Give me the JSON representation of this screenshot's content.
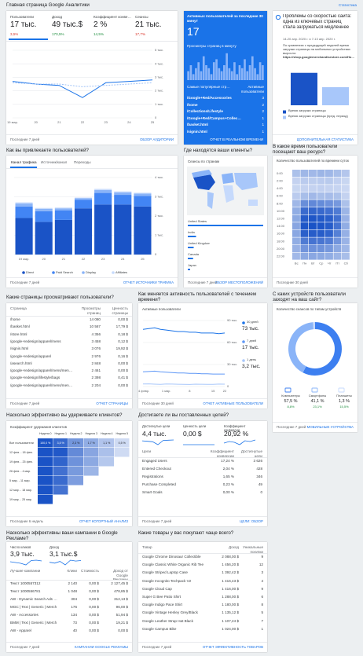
{
  "header": {
    "title": "Главная страница Google Аналитики",
    "insights": "Статистика"
  },
  "overview": {
    "metrics": [
      {
        "label": "Пользователи",
        "value": "17 тыс.",
        "change": "3,5%",
        "color": "#d93025"
      },
      {
        "label": "Доход",
        "value": "49 тыс.$",
        "change": "170,5%",
        "color": "#1e8e3e"
      },
      {
        "label": "Коэффициент конверсии",
        "value": "2 %",
        "change": "14,5%",
        "color": "#1e8e3e"
      },
      {
        "label": "Сеансы",
        "value": "21 тыс.",
        "change": "17,7%",
        "color": "#d93025"
      }
    ],
    "chart": {
      "x": [
        "19 мар.",
        "20",
        "21",
        "22",
        "23",
        "24",
        "25"
      ],
      "series": [
        {
          "color": "#1a73e8",
          "dash": false,
          "values": [
            2700,
            2500,
            2400,
            1500,
            2600,
            2700,
            2800
          ]
        },
        {
          "color": "#9fc2f7",
          "dash": true,
          "values": [
            2600,
            2500,
            2500,
            2300,
            2400,
            2500,
            2600
          ]
        }
      ],
      "ylim": [
        0,
        5000
      ],
      "yticks": [
        {
          "value": 0,
          "label": "0"
        },
        {
          "value": 1000,
          "label": "1 тыс."
        },
        {
          "value": 2000,
          "label": "2 тыс."
        },
        {
          "value": 3000,
          "label": "3 тыс."
        },
        {
          "value": 4000,
          "label": "4 тыс."
        },
        {
          "value": 5000,
          "label": "5 тыс."
        }
      ]
    },
    "footer": {
      "period": "Последние 7 дней",
      "link": "Обзор аудитории"
    }
  },
  "realtime": {
    "title": "Активных пользователей за последние 30 минут",
    "value": "17",
    "subtitle": "Просмотры страниц в минуту",
    "bars": [
      3,
      5,
      2,
      4,
      6,
      3,
      8,
      5,
      4,
      2,
      6,
      7,
      4,
      3,
      5,
      9,
      4,
      3,
      6,
      2,
      5,
      4,
      7,
      3,
      5,
      8,
      4,
      2,
      6,
      5
    ],
    "bars_max": 10,
    "columns": [
      "Самые популярные страницы",
      "Активные пользователи"
    ],
    "rows": [
      [
        "/Google+Red/Accessories",
        "3"
      ],
      [
        "/home",
        "2"
      ],
      [
        "/Collections/Lifestyle",
        "2"
      ],
      [
        "/Google+Red/Campus+Collection",
        "1"
      ],
      [
        "/basket.html",
        "1"
      ],
      [
        "/signin.html",
        "1"
      ]
    ],
    "link": "Отчет в реальном времени"
  },
  "insight": {
    "title": "Проблемы со скоростью сайта: одна из ключевых страниц стала загружаться медленнее",
    "date": "14-20 апр. 2020 г. и 7-13 апр. 2020 г.",
    "body": "По сравнению с предыдущей неделей время загрузки страницы на мобильных устройствах выросло:",
    "url": "https://shop.googlemerchandisestore.com/Home",
    "chart": {
      "series": [
        {
          "name": "Время загрузки страницы",
          "color": "#1a53c6",
          "value": 4.3
        },
        {
          "name": "Время загрузки страницы (пред. период)",
          "color": "#a8c7fa",
          "value": 2.4
        }
      ],
      "ylim": [
        0,
        5
      ]
    },
    "link": "Дополнительная статистика"
  },
  "acquisition": {
    "title": "Как вы привлекаете пользователей?",
    "tabs": [
      "Канал трафика",
      "Источник/канал",
      "Переходы"
    ],
    "chart": {
      "x": [
        "19 мар.",
        "20",
        "21",
        "22",
        "23",
        "24",
        "25"
      ],
      "series": [
        {
          "name": "Direct",
          "color": "#1a53c6",
          "values": [
            1900,
            1700,
            1800,
            2400,
            2600,
            2600,
            2500
          ]
        },
        {
          "name": "Paid Search",
          "color": "#4285f4",
          "values": [
            600,
            550,
            500,
            450,
            600,
            500,
            550
          ]
        },
        {
          "name": "Display",
          "color": "#8ab4f8",
          "values": [
            150,
            120,
            100,
            80,
            150,
            130,
            120
          ]
        },
        {
          "name": "Affiliates",
          "color": "#c6dafc",
          "values": [
            60,
            50,
            40,
            30,
            60,
            50,
            40
          ]
        }
      ],
      "ylim": [
        0,
        4000
      ],
      "yticks": [
        {
          "value": 0,
          "label": "0"
        },
        {
          "value": 1000,
          "label": "1 тыс."
        },
        {
          "value": 2000,
          "label": "2 тыс."
        },
        {
          "value": 3000,
          "label": "3 тыс."
        },
        {
          "value": 4000,
          "label": "4 тыс."
        }
      ]
    },
    "footer": {
      "period": "Последние 7 дней",
      "link": "Отчет Источники трафика"
    }
  },
  "geo": {
    "title": "Где находятся ваши клиенты?",
    "subtitle": "Сеансы по странам",
    "countries": [
      "United States",
      "India",
      "United Kingdom",
      "Canada",
      "Japan"
    ],
    "values": [
      12800,
      1400,
      1000,
      900,
      400
    ],
    "footer": {
      "period": "Последние 7 дней",
      "link": "Обзор местоположений"
    }
  },
  "time": {
    "title": "В какое время пользователи посещают ваш ресурс?",
    "subtitle": "Количество пользователей по времени суток",
    "days": [
      "Вс",
      "Пн",
      "Вт",
      "Ср",
      "Чт",
      "Пт",
      "Сб"
    ],
    "hours": [
      "0:00",
      "2:00",
      "4:00",
      "6:00",
      "8:00",
      "10:00",
      "12:00",
      "14:00",
      "16:00",
      "18:00",
      "20:00",
      "22:00"
    ],
    "values": [
      [
        20,
        25,
        24,
        26,
        25,
        22,
        18
      ],
      [
        12,
        15,
        14,
        15,
        16,
        13,
        10
      ],
      [
        10,
        12,
        12,
        13,
        12,
        11,
        9
      ],
      [
        15,
        22,
        24,
        22,
        23,
        20,
        12
      ],
      [
        25,
        45,
        48,
        46,
        44,
        40,
        20
      ],
      [
        30,
        62,
        65,
        63,
        60,
        55,
        26
      ],
      [
        32,
        70,
        72,
        71,
        68,
        60,
        28
      ],
      [
        34,
        72,
        74,
        73,
        70,
        58,
        30
      ],
      [
        33,
        68,
        70,
        69,
        66,
        52,
        29
      ],
      [
        30,
        55,
        58,
        57,
        54,
        42,
        27
      ],
      [
        28,
        42,
        44,
        43,
        40,
        32,
        25
      ],
      [
        24,
        32,
        33,
        32,
        30,
        26,
        22
      ]
    ],
    "color": "#1a53c6",
    "footer": {
      "period": "Последние 30 дней"
    }
  },
  "pages": {
    "title": "Какие страницы просматривают пользователи?",
    "columns": [
      "Страница",
      "Просмотры страниц",
      "Ценность страницы"
    ],
    "rows": [
      [
        "/home",
        "14 080",
        "0,00 $"
      ],
      [
        "/basket.html",
        "10 567",
        "17,79 $"
      ],
      [
        "/store.html",
        "4 356",
        "0,18 $"
      ],
      [
        "/google+redesign/apparel/mens",
        "3 458",
        "0,12 $"
      ],
      [
        "/signin.html",
        "3 076",
        "19,92 $"
      ],
      [
        "/google+redesign/apparel",
        "2 976",
        "0,16 $"
      ],
      [
        "/asearch.html",
        "2 848",
        "0,00 $"
      ],
      [
        "/google+redesign/apparel/mens/mens+t+shirts",
        "2 461",
        "0,00 $"
      ],
      [
        "/google+redesign/lifestyle/bags",
        "2 398",
        "0,41 $"
      ],
      [
        "/google+redesign/apparel/mens/mens+outerwear",
        "2 204",
        "0,00 $"
      ]
    ],
    "footer": {
      "period": "Последние 7 дней",
      "link": "Отчет Страницы"
    }
  },
  "activity": {
    "title": "Как меняется активность пользователей с течением времени?",
    "subtitle": "Активные пользователи",
    "chart": {
      "x": [
        "24 февр.",
        null,
        null,
        null,
        "1 мар.",
        null,
        null,
        null,
        "8",
        null,
        null,
        null,
        "15",
        null,
        "22"
      ],
      "series": [
        {
          "name": "30 дней",
          "total": "73 тыс.",
          "color": "#1a73e8",
          "dash": false,
          "values": [
            78000,
            79000,
            80000,
            78000,
            77000,
            76000,
            75000,
            75000,
            74000,
            74000,
            73000,
            73000,
            73000,
            72000,
            73000
          ]
        },
        {
          "name": "7 дней",
          "total": "17 тыс.",
          "color": "#5e97f6",
          "dash": false,
          "values": [
            20000,
            20500,
            21000,
            20000,
            19500,
            19000,
            18500,
            18500,
            18000,
            18000,
            17500,
            17500,
            17000,
            17000,
            17000
          ]
        },
        {
          "name": "1 день",
          "total": "3,2 тыс.",
          "color": "#a8c7fa",
          "dash": false,
          "values": [
            3500,
            3600,
            3200,
            2900,
            3400,
            3300,
            3100,
            3000,
            2800,
            3200,
            3100,
            2900,
            3000,
            3300,
            3200
          ]
        }
      ],
      "ylim": [
        0,
        90000
      ],
      "yticks": [
        {
          "value": 0,
          "label": "0"
        },
        {
          "value": 30000,
          "label": "30 тыс."
        },
        {
          "value": 60000,
          "label": "60 тыс."
        },
        {
          "value": 90000,
          "label": "90 тыс."
        }
      ]
    },
    "footer": {
      "period": "Последние 30 дней",
      "link": "Отчет Активные пользователи"
    }
  },
  "devices": {
    "title": "С каких устройств пользователи заходят на ваш сайт?",
    "subtitle": "Количество сеансов по типам устройств",
    "categories": [
      "Компьютеры",
      "Смартфоны",
      "Планшеты"
    ],
    "values": [
      57.5,
      41.1,
      1.3
    ],
    "value_labels": [
      "57,5 %",
      "41,1 %",
      "1,3 %"
    ],
    "changes": [
      "8,8%",
      "23,1%",
      "15,5%"
    ],
    "colors": [
      "#3d7ff0",
      "#8ab4f8",
      "#c6dafc"
    ],
    "footer": {
      "period": "Последние 7 дней",
      "link": "Мобильные устройства"
    }
  },
  "retention": {
    "title": "Насколько эффективно вы удерживаете клиентов?",
    "subtitle": "Коэффициент удержания клиентов",
    "columns": [
      "Неделя 0",
      "Неделя 1",
      "Неделя 2",
      "Неделя 3",
      "Неделя 4",
      "Неделя 5"
    ],
    "rows": [
      "Все пользователи",
      "12 фев. - 18 фев.",
      "19 фев. - 25 фев.",
      "26 фев. - 4 мар.",
      "5 мар. - 11 мар.",
      "12 мар. - 18 мар.",
      "19 мар. - 25 мар."
    ],
    "values": [
      [
        100,
        3.5,
        2.3,
        1.7,
        1.1,
        0.5
      ],
      [
        100,
        3.9,
        2.6,
        1.9,
        1.2,
        0.5
      ],
      [
        100,
        3.6,
        2.4,
        1.8,
        1.0,
        null
      ],
      [
        100,
        3.3,
        2.2,
        1.5,
        null,
        null
      ],
      [
        100,
        3.4,
        2.1,
        null,
        null,
        null
      ],
      [
        100,
        3.2,
        null,
        null,
        null,
        null
      ],
      [
        100,
        null,
        null,
        null,
        null,
        null
      ]
    ],
    "value_labels": [
      "100,0 %",
      "3,5 %",
      "2,3 %",
      "1,7 %",
      "1,1 %",
      "0,5 %"
    ],
    "color": "#1a53c6",
    "footer": {
      "period": "Последние 6 недель",
      "link": "Отчет Когортный анализ"
    }
  },
  "goals": {
    "title": "Достигаете ли вы поставленных целей?",
    "metrics": [
      {
        "label": "Достигнутые цели",
        "value": "4,4 тыс.",
        "spark": [
          620,
          600,
          580,
          450,
          640,
          650,
          660
        ]
      },
      {
        "label": "Ценность цели",
        "value": "0,00 $",
        "spark": [
          0,
          0,
          0,
          0,
          0,
          0,
          0
        ]
      },
      {
        "label": "Коэффициент конверсии",
        "value": "20,92 %",
        "spark": [
          20,
          21,
          20.5,
          19,
          21.5,
          21,
          22
        ]
      }
    ],
    "columns": [
      "Цели",
      "Коэффициент конверсии",
      "Достигнутые цели"
    ],
    "rows": [
      [
        "Engaged Users",
        "17,24 %",
        "3 626"
      ],
      [
        "Entered Checkout",
        "2,04 %",
        "428"
      ],
      [
        "Registrations",
        "1,65 %",
        "346"
      ],
      [
        "Purchase Completed",
        "0,23 %",
        "49"
      ],
      [
        "Smart Goals",
        "0,00 %",
        "0"
      ]
    ],
    "footer": {
      "period": "Последние 7 дней",
      "link": "Цели: обзор"
    }
  },
  "ads": {
    "title": "Насколько эффективны ваши кампании в Google Рекламе?",
    "metrics": [
      {
        "label": "Число кликов",
        "value": "3,9 тыс.",
        "spark": [
          560,
          540,
          520,
          480,
          590,
          600,
          580
        ]
      },
      {
        "label": "Доход",
        "value": "3,1 тыс.$",
        "spark": [
          420,
          380,
          460,
          300,
          520,
          480,
          500
        ]
      }
    ],
    "columns": [
      "Лучшие кампании",
      "Клики",
      "Стоимость",
      "Доход от Google Рекламы"
    ],
    "rows": [
      [
        "Текст 1000557312",
        "2 140",
        "0,00 $",
        "2 127,45 $"
      ],
      [
        "Текст 1000556781",
        "1 048",
        "0,00 $",
        "478,85 $"
      ],
      [
        "AW - Dynamic Search Ads Whole Site",
        "304",
        "0,00 $",
        "312,13 $"
      ],
      [
        "MGC | Text | Generic | Merch",
        "176",
        "0,00 $",
        "96,00 $"
      ],
      [
        "AW - Accessories",
        "134",
        "0,00 $",
        "51,94 $"
      ],
      [
        "BMM | Text | Generic | Merch",
        "73",
        "0,00 $",
        "19,21 $"
      ],
      [
        "AW - Apparel",
        "40",
        "0,00 $",
        "0,00 $"
      ]
    ],
    "footer": {
      "period": "Последние 7 дней",
      "link": "Кампании Google Рекламы"
    }
  },
  "products": {
    "title": "Какие товары у вас покупают чаще всего?",
    "columns": [
      "Товар",
      "Доход",
      "Уникальные покупки"
    ],
    "rows": [
      [
        "Google Chrome Dinosaur Collectible",
        "2 088,00 $",
        "9"
      ],
      [
        "Google Classic White Organic Rib Tee",
        "1 456,20 $",
        "12"
      ],
      [
        "Google Striped Laptop Case",
        "1 392,42 $",
        "3"
      ],
      [
        "Google Incognito Techpack V2",
        "1 416,43 $",
        "4"
      ],
      [
        "Google Cloud Cap",
        "1 416,00 $",
        "9"
      ],
      [
        "Super G Bee Patio Shirt",
        "1 288,00 $",
        "6"
      ],
      [
        "Google Indigo Pace Shirt",
        "1 180,00 $",
        "8"
      ],
      [
        "Google Vintage Henley Grey/Black",
        "1 135,12 $",
        "5"
      ],
      [
        "Google Leather Strap Hat Black",
        "1 107,24 $",
        "7"
      ],
      [
        "Google Campus Bike",
        "1 024,00 $",
        "1"
      ]
    ],
    "footer": {
      "period": "Последние 7 дней",
      "link": "Отчет Эффективность товаров"
    }
  }
}
